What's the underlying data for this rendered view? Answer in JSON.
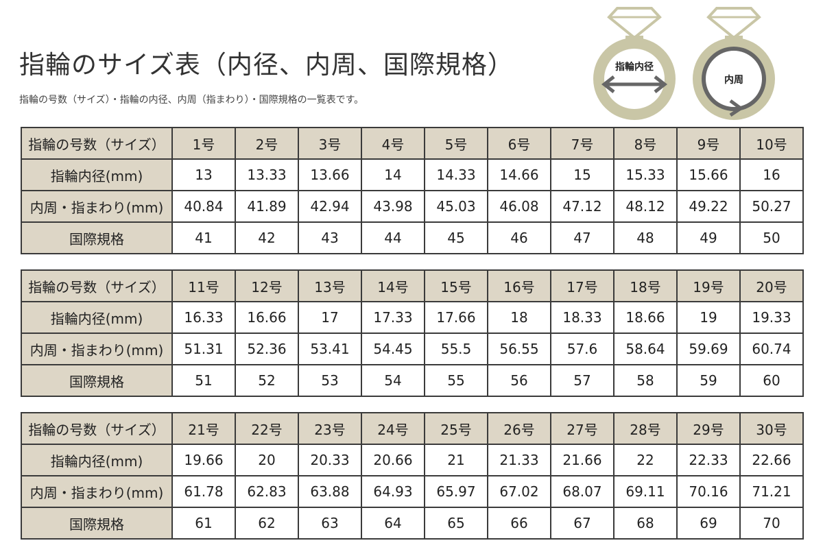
{
  "title": "指輪のサイズ表（内径、内周、国際規格）",
  "subtitle": "指輪の号数（サイズ）・指輪の内径、内周（指まわり）・国際規格の一覧表です。",
  "diagram": {
    "left_label": "指輪内径",
    "right_label": "内周",
    "ring_color": "#c9c6a6",
    "arrow_color": "#666666"
  },
  "row_labels": [
    "指輪の号数（サイズ）",
    "指輪内径(mm)",
    "内周・指まわり(mm)",
    "国際規格"
  ],
  "colors": {
    "header_bg": "#ddd6c6",
    "border": "#3a3a3a"
  },
  "tables": [
    {
      "sizes": [
        "1号",
        "2号",
        "3号",
        "4号",
        "5号",
        "6号",
        "7号",
        "8号",
        "9号",
        "10号"
      ],
      "diameter": [
        "13",
        "13.33",
        "13.66",
        "14",
        "14.33",
        "14.66",
        "15",
        "15.33",
        "15.66",
        "16"
      ],
      "circumference": [
        "40.84",
        "41.89",
        "42.94",
        "43.98",
        "45.03",
        "46.08",
        "47.12",
        "48.12",
        "49.22",
        "50.27"
      ],
      "international": [
        "41",
        "42",
        "43",
        "44",
        "45",
        "46",
        "47",
        "48",
        "49",
        "50"
      ]
    },
    {
      "sizes": [
        "11号",
        "12号",
        "13号",
        "14号",
        "15号",
        "16号",
        "17号",
        "18号",
        "19号",
        "20号"
      ],
      "diameter": [
        "16.33",
        "16.66",
        "17",
        "17.33",
        "17.66",
        "18",
        "18.33",
        "18.66",
        "19",
        "19.33"
      ],
      "circumference": [
        "51.31",
        "52.36",
        "53.41",
        "54.45",
        "55.5",
        "56.55",
        "57.6",
        "58.64",
        "59.69",
        "60.74"
      ],
      "international": [
        "51",
        "52",
        "53",
        "54",
        "55",
        "56",
        "57",
        "58",
        "59",
        "60"
      ]
    },
    {
      "sizes": [
        "21号",
        "22号",
        "23号",
        "24号",
        "25号",
        "26号",
        "27号",
        "28号",
        "29号",
        "30号"
      ],
      "diameter": [
        "19.66",
        "20",
        "20.33",
        "20.66",
        "21",
        "21.33",
        "21.66",
        "22",
        "22.33",
        "22.66"
      ],
      "circumference": [
        "61.78",
        "62.83",
        "63.88",
        "64.93",
        "65.97",
        "67.02",
        "68.07",
        "69.11",
        "70.16",
        "71.21"
      ],
      "international": [
        "61",
        "62",
        "63",
        "64",
        "65",
        "66",
        "67",
        "68",
        "69",
        "70"
      ]
    }
  ]
}
